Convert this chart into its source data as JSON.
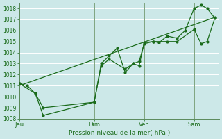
{
  "xlabel": "Pression niveau de la mer( hPa )",
  "bg_color": "#cce8e8",
  "grid_color": "#ffffff",
  "line_color": "#1a6b1a",
  "ylim": [
    1008,
    1018.5
  ],
  "yticks": [
    1008,
    1009,
    1010,
    1011,
    1012,
    1013,
    1014,
    1015,
    1016,
    1017,
    1018
  ],
  "day_labels": [
    "Jeu",
    "Dim",
    "Ven",
    "Sam"
  ],
  "day_positions": [
    0.0,
    0.375,
    0.625,
    0.875
  ],
  "xlim": [
    0,
    1.0
  ],
  "vline_positions": [
    0.0,
    0.375,
    0.625,
    0.875
  ],
  "series1_x": [
    0.0,
    0.04,
    0.08,
    0.12,
    0.375,
    0.41,
    0.45,
    0.49,
    0.53,
    0.57,
    0.6,
    0.625,
    0.67,
    0.7,
    0.74,
    0.79,
    0.83,
    0.875,
    0.91,
    0.94,
    0.98
  ],
  "series1_y": [
    1011.2,
    1011.0,
    1010.3,
    1009.0,
    1009.5,
    1013.0,
    1013.7,
    1014.4,
    1012.2,
    1013.0,
    1012.8,
    1014.9,
    1015.0,
    1014.9,
    1015.5,
    1015.3,
    1016.0,
    1018.0,
    1018.3,
    1018.0,
    1017.1
  ],
  "series2_x": [
    0.0,
    0.08,
    0.12,
    0.375,
    0.41,
    0.45,
    0.53,
    0.57,
    0.6,
    0.625,
    0.67,
    0.74,
    0.79,
    0.875,
    0.91,
    0.94,
    0.98
  ],
  "series2_y": [
    1011.2,
    1010.3,
    1008.3,
    1009.5,
    1012.8,
    1013.4,
    1012.5,
    1013.0,
    1013.2,
    1014.8,
    1015.0,
    1015.0,
    1015.0,
    1016.1,
    1014.8,
    1015.0,
    1017.2
  ],
  "trend_x": [
    0.0,
    0.98
  ],
  "trend_y": [
    1011.0,
    1017.2
  ]
}
